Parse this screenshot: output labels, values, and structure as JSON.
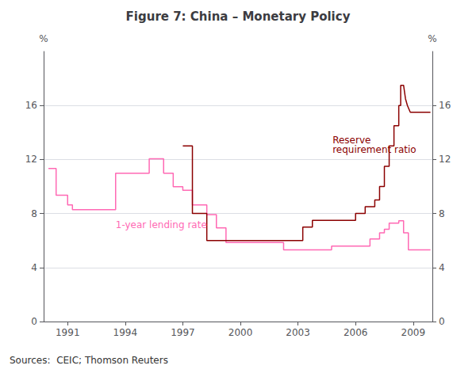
{
  "chart_data": {
    "type": "line",
    "title": "Figure 7: China – Monetary Policy",
    "ylabel": "%",
    "y2label": "%",
    "source": "Sources:  CEIC; Thomson Reuters",
    "xlim": [
      1989.75,
      2010.0
    ],
    "xticks": [
      1991,
      1994,
      1997,
      2000,
      2003,
      2006,
      2009
    ],
    "ylim": [
      0,
      20
    ],
    "yticks": [
      0,
      4,
      8,
      12,
      16
    ],
    "y2lim": [
      0,
      20
    ],
    "y2ticks": [
      0,
      4,
      8,
      12,
      16
    ],
    "grid": true,
    "series": [
      {
        "color": "#FF69B4",
        "line_style": "solid",
        "x": [
          1990.0,
          1990.4,
          1990.4,
          1991.0,
          1991.0,
          1991.25,
          1991.25,
          1993.5,
          1993.5,
          1995.25,
          1995.25,
          1996.0,
          1996.0,
          1996.5,
          1996.5,
          1997.0,
          1997.0,
          1997.5,
          1997.5,
          1997.75,
          1997.75,
          1998.25,
          1998.25,
          1998.75,
          1998.75,
          1999.25,
          1999.25,
          2002.25,
          2002.25,
          2004.75,
          2004.75,
          2006.0,
          2006.0,
          2006.75,
          2006.75,
          2007.25,
          2007.25,
          2007.5,
          2007.5,
          2007.75,
          2007.75,
          2008.25,
          2008.25,
          2008.5,
          2008.5,
          2008.75,
          2008.75,
          2009.0,
          2009.0,
          2009.9
        ],
        "values": [
          11.34,
          11.34,
          9.36,
          9.36,
          8.64,
          8.64,
          8.28,
          8.28,
          10.98,
          10.98,
          12.06,
          12.06,
          10.98,
          10.98,
          9.99,
          9.99,
          9.72,
          9.72,
          8.64,
          8.64,
          8.64,
          8.64,
          7.92,
          7.92,
          6.93,
          6.93,
          5.85,
          5.85,
          5.31,
          5.31,
          5.58,
          5.58,
          5.58,
          5.58,
          6.12,
          6.12,
          6.57,
          6.57,
          6.84,
          6.84,
          7.29,
          7.29,
          7.47,
          7.47,
          6.57,
          6.57,
          5.31,
          5.31,
          5.31,
          5.31
        ]
      },
      {
        "color": "#8B0000",
        "line_style": "solid",
        "axis": "y2",
        "x": [
          1997.0,
          1997.5,
          1997.5,
          1998.25,
          1998.25,
          1999.0,
          1999.0,
          2003.25,
          2003.25,
          2003.75,
          2003.75,
          2004.5,
          2004.5,
          2006.0,
          2006.0,
          2006.5,
          2006.5,
          2007.0,
          2007.0,
          2007.25,
          2007.25,
          2007.5,
          2007.5,
          2007.75,
          2007.75,
          2008.0,
          2008.0,
          2008.25,
          2008.25,
          2008.35,
          2008.35,
          2008.5,
          2008.5,
          2008.6,
          2008.6,
          2008.7,
          2008.7,
          2008.85,
          2008.85,
          2009.0,
          2009.0,
          2009.9
        ],
        "values": [
          13.0,
          13.0,
          8.0,
          8.0,
          6.0,
          6.0,
          6.0,
          6.0,
          7.0,
          7.0,
          7.5,
          7.5,
          7.5,
          7.5,
          8.0,
          8.0,
          8.5,
          8.5,
          9.0,
          9.0,
          10.0,
          10.0,
          11.5,
          11.5,
          13.0,
          13.0,
          14.5,
          14.5,
          16.0,
          16.0,
          17.5,
          17.5,
          17.5,
          16.5,
          16.5,
          16.0,
          16.0,
          15.5,
          15.5,
          15.5,
          15.5,
          15.5
        ]
      }
    ],
    "annotations": [
      {
        "text": "1-year lending rate",
        "x": 1993.5,
        "y": 6.8,
        "color": "#FF69B4"
      },
      {
        "text": "Reserve\nrequirement ratio",
        "x": 2004.8,
        "y": 13.8,
        "color": "#8B0000"
      }
    ]
  }
}
